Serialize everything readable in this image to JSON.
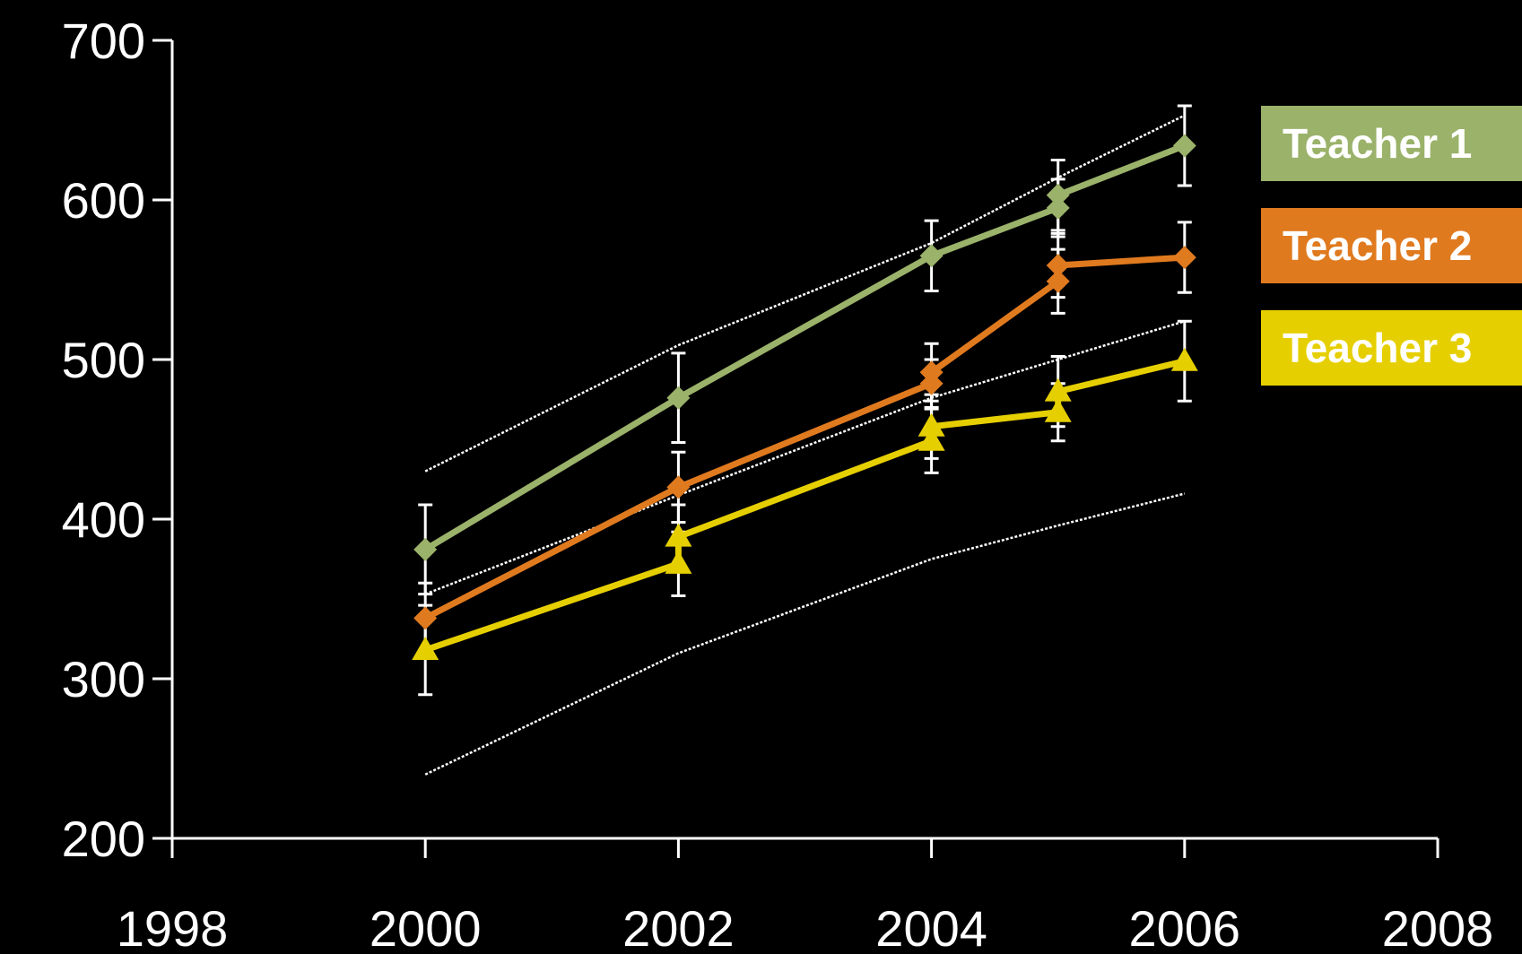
{
  "chart_data": {
    "type": "line",
    "title": "",
    "xlabel": "",
    "ylabel": "",
    "xlim": [
      1998,
      2008
    ],
    "ylim": [
      200,
      700
    ],
    "x_ticks": [
      1998,
      2000,
      2002,
      2004,
      2006,
      2008
    ],
    "y_ticks": [
      200,
      300,
      400,
      500,
      600,
      700
    ],
    "grid": false,
    "legend_position": "right",
    "series": [
      {
        "name": "Teacher 1",
        "color": "#9bb26a",
        "marker": "diamond",
        "points": [
          {
            "x": 2000,
            "y": 381,
            "err": 28
          },
          {
            "x": 2002,
            "y": 476,
            "err": 28
          },
          {
            "x": 2004,
            "y": 565,
            "err": 22
          },
          {
            "x": 2005,
            "y": 595,
            "err": 18
          },
          {
            "x": 2005,
            "y": 603,
            "err": 22
          },
          {
            "x": 2006,
            "y": 634,
            "err": 25
          }
        ]
      },
      {
        "name": "Teacher 2",
        "color": "#e07a1f",
        "marker": "diamond",
        "points": [
          {
            "x": 2000,
            "y": 338,
            "err": 22
          },
          {
            "x": 2002,
            "y": 420,
            "err": 22
          },
          {
            "x": 2004,
            "y": 485,
            "err": 15
          },
          {
            "x": 2004,
            "y": 492,
            "err": 18
          },
          {
            "x": 2005,
            "y": 549,
            "err": 20
          },
          {
            "x": 2005,
            "y": 559,
            "err": 20
          },
          {
            "x": 2006,
            "y": 564,
            "err": 22
          }
        ]
      },
      {
        "name": "Teacher 3",
        "color": "#e6cf00",
        "marker": "triangle",
        "points": [
          {
            "x": 2000,
            "y": 318,
            "err": 28
          },
          {
            "x": 2002,
            "y": 372,
            "err": 20
          },
          {
            "x": 2002,
            "y": 389,
            "err": 20
          },
          {
            "x": 2004,
            "y": 449,
            "err": 20
          },
          {
            "x": 2004,
            "y": 458,
            "err": 20
          },
          {
            "x": 2005,
            "y": 467,
            "err": 18
          },
          {
            "x": 2005,
            "y": 480,
            "err": 22
          },
          {
            "x": 2006,
            "y": 499,
            "err": 25
          }
        ]
      }
    ],
    "reference_lines": {
      "color": "#ffffff",
      "lines": [
        {
          "points": [
            [
              2000,
              430
            ],
            [
              2002,
              509
            ],
            [
              2004,
              573
            ],
            [
              2005,
              614
            ],
            [
              2006,
              653
            ]
          ]
        },
        {
          "points": [
            [
              2000,
              353
            ],
            [
              2002,
              415
            ],
            [
              2004,
              476
            ],
            [
              2005,
              500
            ],
            [
              2006,
              524
            ]
          ]
        },
        {
          "points": [
            [
              2000,
              240
            ],
            [
              2002,
              316
            ],
            [
              2004,
              375
            ],
            [
              2005,
              396
            ],
            [
              2006,
              416
            ]
          ]
        }
      ]
    }
  }
}
